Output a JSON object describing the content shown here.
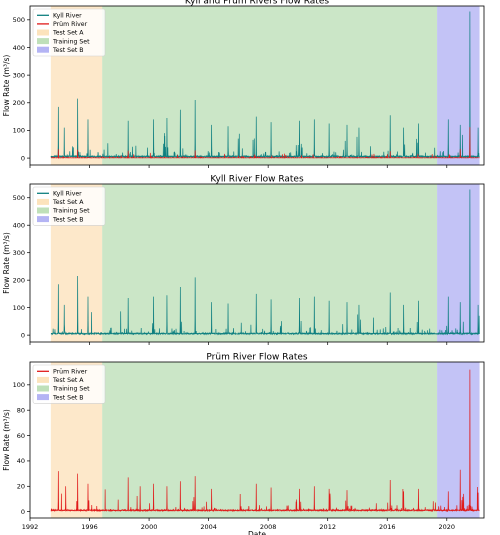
{
  "colors": {
    "kyll": "#0e7f80",
    "prum": "#e01a1a",
    "test_set_a": "#fbd9a6",
    "training_set": "#a9d5a2",
    "test_set_b": "#9b9bf0"
  },
  "chart_data": [
    {
      "type": "line",
      "title": "Kyll and Prüm Rivers Flow Rates",
      "xlabel": "",
      "ylabel": "Flow Rate (m³/s)",
      "xlim": [
        1992.0,
        2022.5
      ],
      "ylim": [
        -25,
        550
      ],
      "yticks": [
        0,
        100,
        200,
        300,
        400,
        500
      ],
      "legend_position": "top-left",
      "series": [
        {
          "name": "Kyll River",
          "color_key": "kyll",
          "peaks": [
            [
              1993.9,
              185
            ],
            [
              1994.3,
              110
            ],
            [
              1995.2,
              215
            ],
            [
              1995.9,
              140
            ],
            [
              1998.6,
              135
            ],
            [
              2000.3,
              140
            ],
            [
              2001.2,
              145
            ],
            [
              2002.1,
              175
            ],
            [
              2003.1,
              210
            ],
            [
              2004.2,
              120
            ],
            [
              2005.3,
              115
            ],
            [
              2007.2,
              150
            ],
            [
              2008.2,
              130
            ],
            [
              2010.1,
              135
            ],
            [
              2011.1,
              140
            ],
            [
              2012.1,
              125
            ],
            [
              2013.3,
              120
            ],
            [
              2014.1,
              110
            ],
            [
              2016.2,
              155
            ],
            [
              2017.1,
              110
            ],
            [
              2018.1,
              125
            ],
            [
              2020.1,
              140
            ],
            [
              2020.9,
              120
            ],
            [
              2021.55,
              530
            ],
            [
              2022.1,
              110
            ]
          ]
        },
        {
          "name": "Prüm River",
          "color_key": "prum",
          "peaks": [
            [
              1993.9,
              32
            ],
            [
              1995.2,
              30
            ],
            [
              1998.6,
              27
            ],
            [
              2003.1,
              28
            ],
            [
              2016.2,
              25
            ],
            [
              2020.9,
              33
            ],
            [
              2021.55,
              112
            ]
          ]
        }
      ],
      "bands": [
        {
          "name": "Test Set A",
          "color_key": "test_set_a",
          "x": [
            1993.4,
            1996.85
          ]
        },
        {
          "name": "Training Set",
          "color_key": "training_set",
          "x": [
            1996.85,
            2019.35
          ]
        },
        {
          "name": "Test Set B",
          "color_key": "test_set_b",
          "x": [
            2019.35,
            2022.2
          ]
        }
      ]
    },
    {
      "type": "line",
      "title": "Kyll River Flow Rates",
      "xlabel": "",
      "ylabel": "Flow Rate (m³/s)",
      "xlim": [
        1992.0,
        2022.5
      ],
      "ylim": [
        -25,
        550
      ],
      "yticks": [
        0,
        100,
        200,
        300,
        400,
        500
      ],
      "legend_position": "top-left",
      "series": [
        {
          "name": "Kyll River",
          "color_key": "kyll",
          "peaks": [
            [
              1993.9,
              185
            ],
            [
              1994.3,
              110
            ],
            [
              1995.2,
              215
            ],
            [
              1995.9,
              140
            ],
            [
              1998.6,
              135
            ],
            [
              2000.3,
              140
            ],
            [
              2001.2,
              145
            ],
            [
              2002.1,
              175
            ],
            [
              2003.1,
              210
            ],
            [
              2004.2,
              120
            ],
            [
              2005.3,
              115
            ],
            [
              2007.2,
              150
            ],
            [
              2008.2,
              130
            ],
            [
              2010.1,
              135
            ],
            [
              2011.1,
              140
            ],
            [
              2012.1,
              125
            ],
            [
              2013.3,
              120
            ],
            [
              2014.1,
              110
            ],
            [
              2016.2,
              155
            ],
            [
              2017.1,
              110
            ],
            [
              2018.1,
              125
            ],
            [
              2020.1,
              140
            ],
            [
              2020.9,
              120
            ],
            [
              2021.55,
              530
            ],
            [
              2022.1,
              110
            ]
          ]
        }
      ],
      "bands": [
        {
          "name": "Test Set A",
          "color_key": "test_set_a",
          "x": [
            1993.4,
            1996.85
          ]
        },
        {
          "name": "Training Set",
          "color_key": "training_set",
          "x": [
            1996.85,
            2019.35
          ]
        },
        {
          "name": "Test Set B",
          "color_key": "test_set_b",
          "x": [
            2019.35,
            2022.2
          ]
        }
      ]
    },
    {
      "type": "line",
      "title": "Prüm River Flow Rates",
      "xlabel": "Date",
      "ylabel": "Flow Rate (m³/s)",
      "xlim": [
        1992.0,
        2022.5
      ],
      "ylim": [
        -5,
        118
      ],
      "yticks": [
        0,
        20,
        40,
        60,
        80,
        100
      ],
      "xticks": [
        "1992",
        "1996",
        "2000",
        "2004",
        "2008",
        "2012",
        "2016",
        "2020"
      ],
      "legend_position": "top-left",
      "series": [
        {
          "name": "Prüm River",
          "color_key": "prum",
          "peaks": [
            [
              1993.9,
              32
            ],
            [
              1994.4,
              20
            ],
            [
              1995.2,
              30
            ],
            [
              1995.9,
              22
            ],
            [
              1998.6,
              27
            ],
            [
              1999.4,
              20
            ],
            [
              2000.3,
              22
            ],
            [
              2001.2,
              20
            ],
            [
              2002.1,
              24
            ],
            [
              2003.1,
              28
            ],
            [
              2004.2,
              18
            ],
            [
              2007.2,
              22
            ],
            [
              2008.2,
              19
            ],
            [
              2010.1,
              18
            ],
            [
              2011.1,
              20
            ],
            [
              2012.1,
              18
            ],
            [
              2013.3,
              17
            ],
            [
              2016.2,
              25
            ],
            [
              2017.1,
              16
            ],
            [
              2018.1,
              18
            ],
            [
              2020.1,
              16
            ],
            [
              2020.9,
              33
            ],
            [
              2021.55,
              112
            ],
            [
              2022.1,
              15
            ]
          ]
        }
      ],
      "bands": [
        {
          "name": "Test Set A",
          "color_key": "test_set_a",
          "x": [
            1993.4,
            1996.85
          ]
        },
        {
          "name": "Training Set",
          "color_key": "training_set",
          "x": [
            1996.85,
            2019.35
          ]
        },
        {
          "name": "Test Set B",
          "color_key": "test_set_b",
          "x": [
            2019.35,
            2022.2
          ]
        }
      ]
    }
  ]
}
